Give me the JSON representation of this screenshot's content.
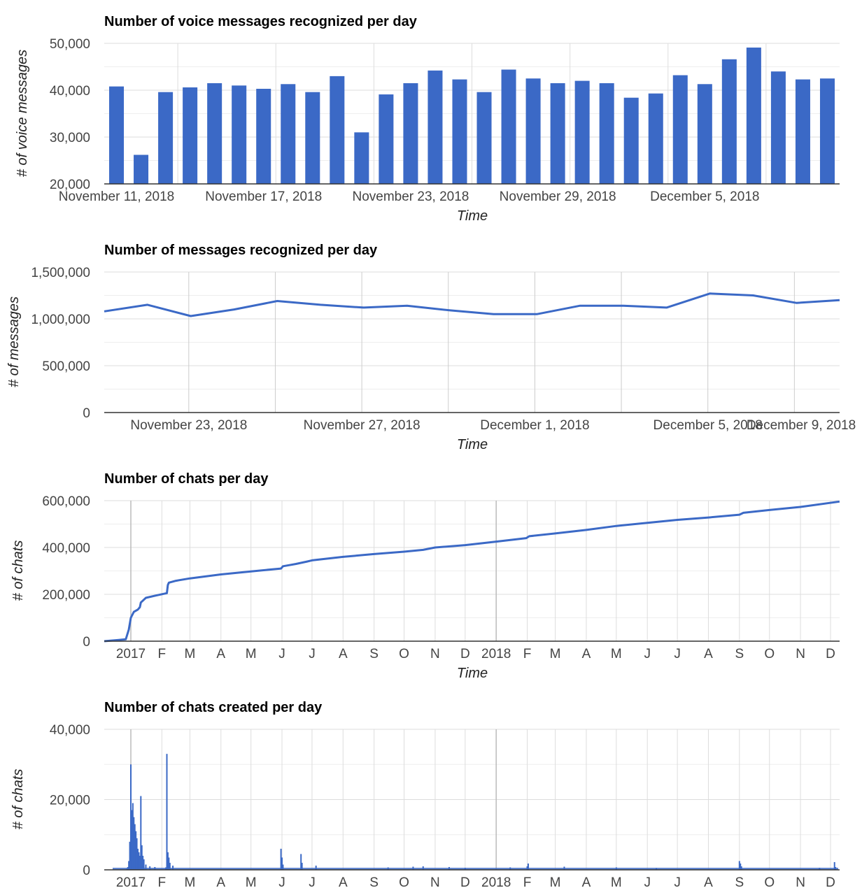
{
  "colors": {
    "series": "#3b69c6",
    "grid": "#dddddd",
    "major_grid": "#bbbbbb",
    "axis": "#333333"
  },
  "chart_data": [
    {
      "type": "bar",
      "title": "Number of voice messages recognized per day",
      "ylabel": "# of voice messages",
      "xlabel": "Time",
      "ylim": [
        20000,
        50000
      ],
      "yticks": [
        "50,000",
        "40,000",
        "30,000",
        "20,000"
      ],
      "ytick_values": [
        50000,
        40000,
        30000,
        20000
      ],
      "xtick_labels": [
        "November 11, 2018",
        "November 17, 2018",
        "November 23, 2018",
        "November 29, 2018",
        "December 5, 2018"
      ],
      "categories": [
        "2018-11-11",
        "2018-11-12",
        "2018-11-13",
        "2018-11-14",
        "2018-11-15",
        "2018-11-16",
        "2018-11-17",
        "2018-11-18",
        "2018-11-19",
        "2018-11-20",
        "2018-11-21",
        "2018-11-22",
        "2018-11-23",
        "2018-11-24",
        "2018-11-25",
        "2018-11-26",
        "2018-11-27",
        "2018-11-28",
        "2018-11-29",
        "2018-11-30",
        "2018-12-01",
        "2018-12-02",
        "2018-12-03",
        "2018-12-04",
        "2018-12-05",
        "2018-12-06",
        "2018-12-07",
        "2018-12-08",
        "2018-12-09",
        "2018-12-10"
      ],
      "values": [
        40800,
        26200,
        39600,
        40600,
        41500,
        41000,
        40300,
        41300,
        39600,
        43000,
        31000,
        39100,
        41500,
        44200,
        42300,
        39600,
        44400,
        42500,
        41500,
        42000,
        41500,
        38400,
        39300,
        43200,
        41300,
        46600,
        49100,
        44000,
        42300,
        42500
      ]
    },
    {
      "type": "line",
      "title": "Number of messages recognized per day",
      "ylabel": "# of messages",
      "xlabel": "Time",
      "ylim": [
        0,
        1500000
      ],
      "yticks": [
        "1,500,000",
        "1,000,000",
        "500,000",
        "0"
      ],
      "ytick_values": [
        1500000,
        1000000,
        500000,
        0
      ],
      "xtick_labels": [
        "November 23, 2018",
        "November 27, 2018",
        "December 1, 2018",
        "December 5, 2018",
        "December 9, 2018"
      ],
      "x": [
        "2018-11-22",
        "2018-11-23",
        "2018-11-24",
        "2018-11-25",
        "2018-11-26",
        "2018-11-27",
        "2018-11-28",
        "2018-11-29",
        "2018-11-30",
        "2018-12-01",
        "2018-12-02",
        "2018-12-03",
        "2018-12-04",
        "2018-12-05",
        "2018-12-06",
        "2018-12-07",
        "2018-12-08",
        "2018-12-09"
      ],
      "values": [
        1080000,
        1150000,
        1030000,
        1100000,
        1190000,
        1150000,
        1120000,
        1140000,
        1090000,
        1050000,
        1050000,
        1140000,
        1140000,
        1120000,
        1270000,
        1250000,
        1170000,
        1200000
      ]
    },
    {
      "type": "line",
      "title": "Number of chats per day",
      "ylabel": "# of chats",
      "xlabel": "Time",
      "ylim": [
        0,
        600000
      ],
      "yticks": [
        "600,000",
        "400,000",
        "200,000",
        "0"
      ],
      "ytick_values": [
        600000,
        400000,
        200000,
        0
      ],
      "xtick_labels": [
        "2017",
        "F",
        "M",
        "A",
        "M",
        "J",
        "J",
        "A",
        "S",
        "O",
        "N",
        "D",
        "2018",
        "F",
        "M",
        "A",
        "M",
        "J",
        "J",
        "A",
        "S",
        "O",
        "N",
        "D"
      ],
      "x": [
        "2016-12-01",
        "2016-12-20",
        "2016-12-27",
        "2016-12-30",
        "2017-01-01",
        "2017-01-04",
        "2017-01-08",
        "2017-01-10",
        "2017-01-11",
        "2017-01-16",
        "2017-01-26",
        "2017-02-06",
        "2017-02-07",
        "2017-02-08",
        "2017-02-15",
        "2017-03-01",
        "2017-04-01",
        "2017-05-01",
        "2017-05-31",
        "2017-06-02",
        "2017-06-10",
        "2017-06-15",
        "2017-06-26",
        "2017-07-01",
        "2017-08-01",
        "2017-09-01",
        "2017-10-01",
        "2017-10-20",
        "2017-11-01",
        "2017-12-01",
        "2018-01-01",
        "2018-01-31",
        "2018-02-03",
        "2018-03-01",
        "2018-04-01",
        "2018-05-01",
        "2018-06-01",
        "2018-07-01",
        "2018-08-01",
        "2018-09-01",
        "2018-09-05",
        "2018-10-01",
        "2018-11-01",
        "2018-12-10"
      ],
      "values": [
        0,
        5000,
        8000,
        50000,
        100000,
        125000,
        135000,
        145000,
        165000,
        185000,
        195000,
        205000,
        240000,
        250000,
        258000,
        268000,
        285000,
        298000,
        310000,
        320000,
        326000,
        330000,
        340000,
        345000,
        360000,
        372000,
        382000,
        390000,
        400000,
        410000,
        425000,
        440000,
        448000,
        460000,
        475000,
        492000,
        505000,
        518000,
        528000,
        540000,
        548000,
        560000,
        573000,
        596000
      ]
    },
    {
      "type": "bar",
      "title": "Number of chats created per day",
      "ylabel": "# of chats",
      "xlabel": "",
      "ylim": [
        0,
        40000
      ],
      "yticks": [
        "40,000",
        "20,000",
        "0"
      ],
      "ytick_values": [
        40000,
        20000,
        0
      ],
      "xtick_labels": [
        "2017",
        "F",
        "M",
        "A",
        "M",
        "J",
        "J",
        "A",
        "S",
        "O",
        "N",
        "D",
        "2018",
        "F",
        "M",
        "A",
        "M",
        "J",
        "J",
        "A",
        "S",
        "O",
        "N",
        "D"
      ],
      "x": [
        "2016-12-28",
        "2016-12-29",
        "2016-12-30",
        "2016-12-31",
        "2017-01-01",
        "2017-01-02",
        "2017-01-03",
        "2017-01-04",
        "2017-01-05",
        "2017-01-06",
        "2017-01-07",
        "2017-01-08",
        "2017-01-09",
        "2017-01-10",
        "2017-01-11",
        "2017-01-12",
        "2017-01-13",
        "2017-01-14",
        "2017-01-16",
        "2017-01-20",
        "2017-01-25",
        "2017-02-05",
        "2017-02-06",
        "2017-02-07",
        "2017-02-08",
        "2017-02-09",
        "2017-02-12",
        "2017-05-31",
        "2017-06-01",
        "2017-06-02",
        "2017-06-20",
        "2017-06-21",
        "2017-07-05",
        "2017-09-15",
        "2017-10-10",
        "2017-10-20",
        "2017-11-15",
        "2017-12-01",
        "2018-01-15",
        "2018-02-01",
        "2018-02-02",
        "2018-03-10",
        "2018-05-01",
        "2018-06-10",
        "2018-09-01",
        "2018-09-02",
        "2018-09-03",
        "2018-11-20",
        "2018-12-05",
        "2018-12-06"
      ],
      "values": [
        300,
        800,
        2500,
        8000,
        30000,
        17000,
        19000,
        15000,
        13000,
        11000,
        9000,
        6000,
        5000,
        4000,
        21000,
        7000,
        4000,
        3000,
        1500,
        1000,
        800,
        700,
        33000,
        5000,
        3500,
        2000,
        1200,
        6000,
        3500,
        1500,
        4500,
        2000,
        1200,
        700,
        900,
        1000,
        800,
        600,
        700,
        1000,
        1800,
        900,
        700,
        500,
        2500,
        1800,
        1000,
        600,
        2200,
        800
      ]
    }
  ]
}
